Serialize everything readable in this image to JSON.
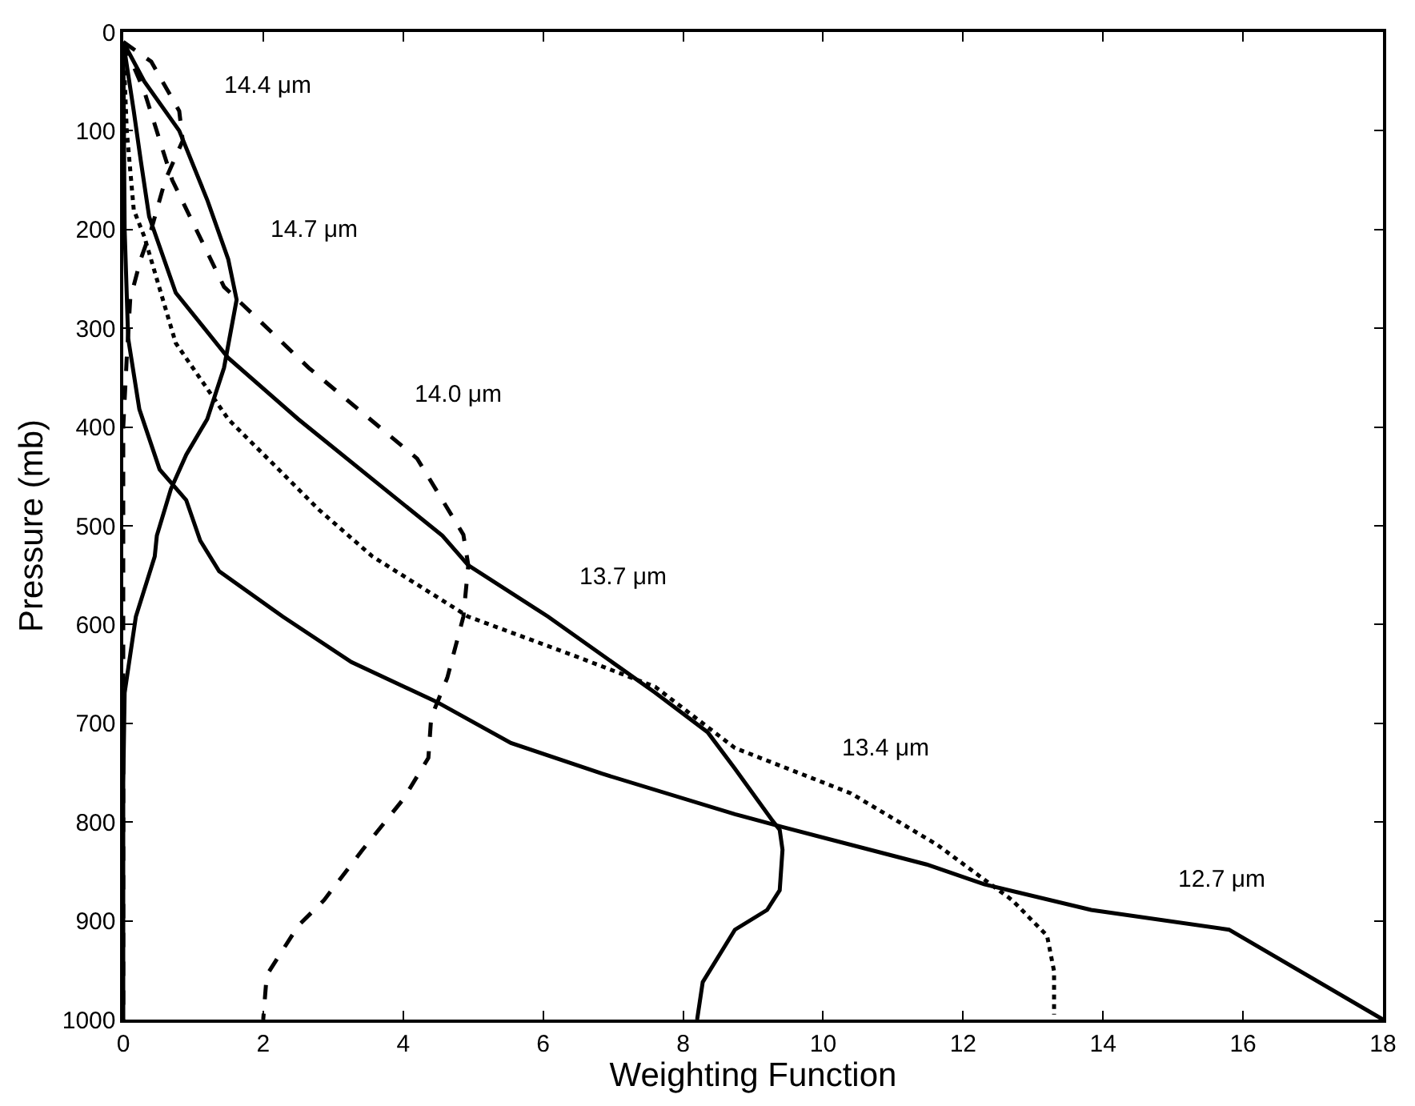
{
  "chart_data": {
    "type": "line",
    "xlabel": "Weighting Function",
    "ylabel": "Pressure (mb)",
    "xlim": [
      0,
      18
    ],
    "xticks": [
      0,
      2,
      4,
      6,
      8,
      10,
      12,
      14,
      16,
      18
    ],
    "ylim": [
      1000,
      0
    ],
    "yticks": [
      0,
      100,
      200,
      300,
      400,
      500,
      600,
      700,
      800,
      900,
      1000
    ],
    "grid": false,
    "legend": false,
    "marker": "none",
    "series": [
      {
        "name": "14.4 μm",
        "color": "#000000",
        "line_style": "dashed",
        "x": [
          0,
          0.4,
          0.8,
          0.85,
          0.6,
          0.4,
          0.25,
          0.1,
          0.05,
          0,
          0
        ],
        "values": [
          10,
          30,
          80,
          110,
          150,
          200,
          230,
          270,
          330,
          400,
          1000
        ]
      },
      {
        "name": "14.7 μm",
        "color": "#000000",
        "line_style": "solid",
        "x": [
          0,
          0.3,
          0.8,
          1.2,
          1.5,
          1.62,
          1.44,
          1.2,
          0.9,
          0.68,
          0.48,
          0.45,
          0.18,
          0.02,
          0,
          0
        ],
        "values": [
          10,
          50,
          100,
          170,
          230,
          271,
          340,
          392,
          428,
          463,
          510,
          531,
          592,
          669,
          760,
          1000
        ]
      },
      {
        "name": "14.0 μm",
        "color": "#000000",
        "line_style": "dashed",
        "x": [
          0,
          0.3,
          0.7,
          1.44,
          2.65,
          4.2,
          4.86,
          4.93,
          4.86,
          4.63,
          4.4,
          4.36,
          4.0,
          3.42,
          2.87,
          2.5,
          2.05,
          2.0
        ],
        "values": [
          10,
          60,
          150,
          258,
          340,
          432,
          509,
          540,
          592,
          654,
          694,
          735,
          777,
          828,
          879,
          905,
          955,
          1000
        ]
      },
      {
        "name": "13.7 μm",
        "color": "#000000",
        "line_style": "solid",
        "x": [
          0,
          0.15,
          0.25,
          0.37,
          0.75,
          1.5,
          2.5,
          3.65,
          4.56,
          4.93,
          6.07,
          7.6,
          8.35,
          8.74,
          9.26,
          9.38,
          9.42,
          9.38,
          9.2,
          8.74,
          8.28,
          8.2
        ],
        "values": [
          10,
          80,
          130,
          187,
          264,
          330,
          392,
          458,
          510,
          540,
          592,
          669,
          709,
          746,
          797,
          808,
          828,
          869,
          889,
          909,
          962,
          1000
        ]
      },
      {
        "name": "13.4 μm",
        "color": "#000000",
        "line_style": "dotted",
        "x": [
          0,
          0.05,
          0.15,
          0.3,
          0.75,
          1.5,
          2.8,
          3.56,
          4.93,
          6.46,
          7.6,
          8.74,
          10.4,
          11.63,
          12.7,
          13.2,
          13.3,
          13.3
        ],
        "values": [
          10,
          100,
          180,
          207,
          315,
          392,
          484,
          531,
          592,
          632,
          663,
          725,
          771,
          823,
          879,
          915,
          951,
          995
        ]
      },
      {
        "name": "12.7 μm",
        "color": "#000000",
        "line_style": "solid",
        "x": [
          0,
          0.02,
          0.07,
          0.23,
          0.52,
          0.9,
          1.1,
          1.37,
          2.28,
          3.26,
          4.47,
          5.54,
          6.84,
          8.74,
          9.42,
          11.48,
          12.3,
          13.83,
          15.8,
          18
        ],
        "values": [
          10,
          200,
          310,
          382,
          443,
          474,
          515,
          546,
          592,
          638,
          678,
          720,
          751,
          792,
          805,
          843,
          863,
          889,
          909,
          1000
        ]
      }
    ]
  }
}
